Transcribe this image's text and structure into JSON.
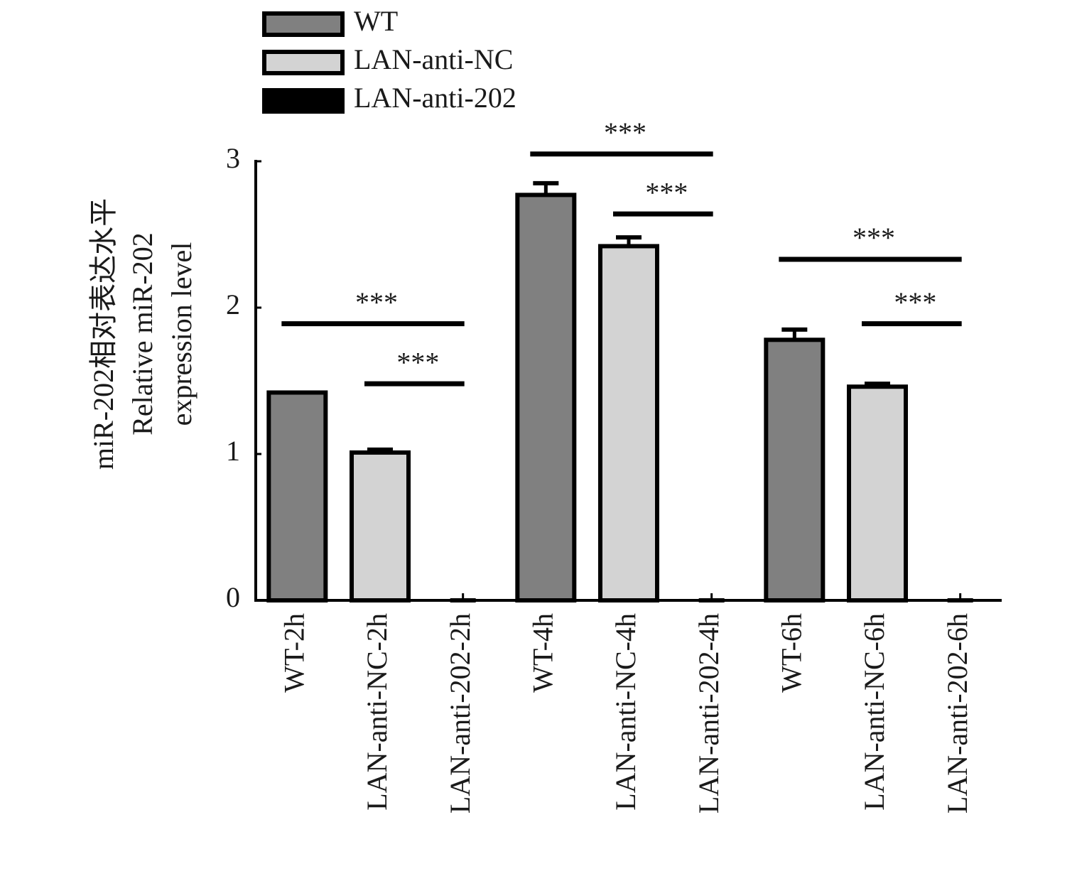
{
  "chart_data": {
    "type": "bar",
    "ylabel": [
      "miR-202相对表达水平",
      "Relative miR-202",
      "expression level"
    ],
    "categories": [
      "WT-2h",
      "LAN-anti-NC-2h",
      "LAN-anti-202-2h",
      "WT-4h",
      "LAN-anti-NC-4h",
      "LAN-anti-202-4h",
      "WT-6h",
      "LAN-anti-NC-6h",
      "LAN-anti-202-6h"
    ],
    "series": [
      {
        "name": "WT",
        "color": "#808080",
        "values": [
          1.42,
          null,
          null,
          2.77,
          null,
          null,
          1.78,
          null,
          null
        ],
        "errors": [
          0.0,
          null,
          null,
          0.08,
          null,
          null,
          0.07,
          null,
          null
        ]
      },
      {
        "name": "LAN-anti-NC",
        "color": "#d3d3d3",
        "values": [
          null,
          1.01,
          null,
          null,
          2.42,
          null,
          null,
          1.46,
          null
        ],
        "errors": [
          null,
          0.02,
          null,
          null,
          0.06,
          null,
          null,
          0.02,
          null
        ]
      },
      {
        "name": "LAN-anti-202",
        "color": "#000000",
        "values": [
          null,
          null,
          0,
          null,
          null,
          0,
          null,
          null,
          0
        ],
        "errors": [
          null,
          null,
          0,
          null,
          null,
          0,
          null,
          null,
          0
        ]
      }
    ],
    "ylim": [
      0,
      3
    ],
    "yticks": [
      0,
      1,
      2,
      3
    ],
    "annotations": [
      {
        "text": "***",
        "x": [
          "WT-2h",
          "LAN-anti-202-2h"
        ],
        "y": 1.89
      },
      {
        "text": "***",
        "x": [
          "LAN-anti-NC-2h",
          "LAN-anti-202-2h"
        ],
        "y": 1.48
      },
      {
        "text": "***",
        "x": [
          "WT-4h",
          "LAN-anti-202-4h"
        ],
        "y": 3.05
      },
      {
        "text": "***",
        "x": [
          "LAN-anti-NC-4h",
          "LAN-anti-202-4h"
        ],
        "y": 2.64
      },
      {
        "text": "***",
        "x": [
          "WT-6h",
          "LAN-anti-202-6h"
        ],
        "y": 2.33
      },
      {
        "text": "***",
        "x": [
          "LAN-anti-NC-6h",
          "LAN-anti-202-6h"
        ],
        "y": 1.89
      }
    ]
  }
}
